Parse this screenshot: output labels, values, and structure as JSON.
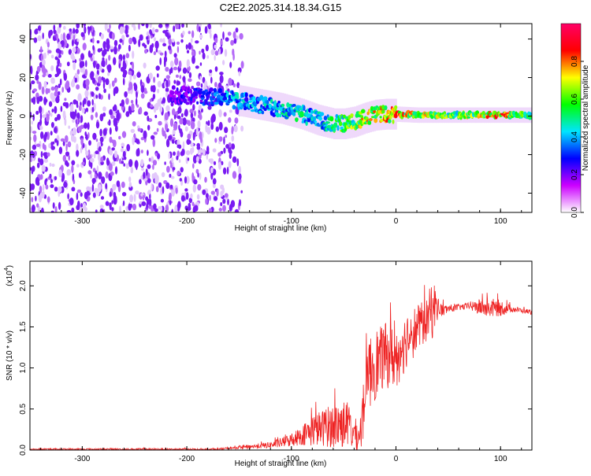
{
  "title": "C2E2.2025.314.18.34.G15",
  "chart_data": [
    {
      "type": "heatmap",
      "xlabel": "Height of straight line (km)",
      "ylabel": "Frequency (Hz)",
      "xlim": [
        -350,
        130
      ],
      "ylim": [
        -50,
        48
      ],
      "xticks": [
        -300,
        -200,
        -100,
        0,
        100
      ],
      "xtick_labels": [
        "-300",
        "-200",
        "-100",
        "0",
        "100"
      ],
      "yticks": [
        -40,
        -20,
        0,
        20,
        40
      ],
      "ytick_labels": [
        "-40",
        "-20",
        "0",
        "20",
        "40"
      ],
      "colorbar": {
        "label": "Normalized spectral amplitude",
        "range": [
          0,
          1
        ],
        "ticks": [
          0.0,
          0.2,
          0.4,
          0.6,
          0.8
        ],
        "tick_labels": [
          "0.0",
          "0.2",
          "0.4",
          "0.6",
          "0.8"
        ],
        "colors": [
          "#ffffff",
          "#cc00ff",
          "#0000ff",
          "#00e5ff",
          "#00ff00",
          "#ffff00",
          "#ff0000",
          "#ff0066"
        ]
      },
      "noise_region_x": [
        -350,
        -145
      ],
      "ridge": {
        "x": [
          -215,
          -180,
          -160,
          -150,
          -130,
          -110,
          -90,
          -75,
          -60,
          -50,
          -40,
          -30,
          -20,
          -10,
          0,
          20,
          50,
          80,
          100,
          130
        ],
        "y": [
          11,
          10,
          9,
          8,
          6,
          4,
          1,
          -2,
          -4,
          -4,
          -3,
          -1,
          0.5,
          1,
          1,
          0.5,
          0.5,
          0.5,
          0.5,
          0.5
        ],
        "peak_amplitude": [
          0.25,
          0.35,
          0.45,
          0.45,
          0.45,
          0.5,
          0.55,
          0.5,
          0.6,
          0.65,
          0.7,
          0.8,
          0.85,
          0.9,
          0.9,
          0.8,
          0.7,
          0.75,
          0.95,
          0.6
        ]
      }
    },
    {
      "type": "line",
      "xlabel": "Height of straight line (km)",
      "ylabel": "SNR (10 * v/v)",
      "y_multiplier_label": "(x10",
      "y_multiplier_exp": "4",
      "xlim": [
        -350,
        130
      ],
      "ylim": [
        0,
        2.3
      ],
      "xticks": [
        -300,
        -200,
        -100,
        0,
        100
      ],
      "xtick_labels": [
        "-300",
        "-200",
        "-100",
        "0",
        "100"
      ],
      "yticks": [
        0,
        0.5,
        1.0,
        1.5,
        2.0
      ],
      "ytick_labels": [
        "0.0",
        "0.5",
        "1.0",
        "1.5",
        "2.0"
      ],
      "series": [
        {
          "name": "SNR",
          "color": "#ee2222",
          "x": [
            -350,
            -250,
            -170,
            -160,
            -150,
            -120,
            -100,
            -90,
            -80,
            -70,
            -60,
            -50,
            -45,
            -40,
            -35,
            -30,
            -25,
            -20,
            -15,
            -10,
            -5,
            0,
            5,
            10,
            20,
            30,
            35,
            40,
            45,
            50,
            60,
            70,
            80,
            90,
            100,
            110,
            120,
            130
          ],
          "y": [
            0.01,
            0.01,
            0.01,
            0.02,
            0.03,
            0.06,
            0.12,
            0.18,
            0.24,
            0.27,
            0.3,
            0.32,
            0.28,
            0.2,
            0.15,
            0.55,
            0.95,
            1.05,
            1.1,
            1.15,
            1.15,
            1.1,
            1.2,
            1.35,
            1.48,
            1.58,
            1.75,
            1.72,
            1.7,
            1.72,
            1.74,
            1.75,
            1.74,
            1.73,
            1.73,
            1.72,
            1.7,
            1.68
          ],
          "noise_amplitude": [
            0.01,
            0.01,
            0.01,
            0.01,
            0.02,
            0.04,
            0.08,
            0.12,
            0.2,
            0.22,
            0.28,
            0.3,
            0.3,
            0.2,
            0.2,
            0.4,
            0.45,
            0.45,
            0.4,
            0.4,
            0.4,
            0.35,
            0.35,
            0.35,
            0.3,
            0.25,
            0.4,
            0.12,
            0.08,
            0.05,
            0.04,
            0.04,
            0.1,
            0.12,
            0.1,
            0.04,
            0.03,
            0.03
          ]
        }
      ]
    }
  ]
}
